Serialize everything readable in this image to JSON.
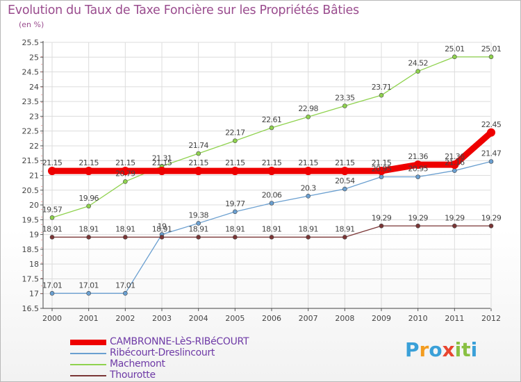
{
  "title": "Evolution du Taux de Taxe Foncière sur les Propriétés Bâties",
  "unit_label": "(en %)",
  "brand": {
    "letters": [
      "P",
      "r",
      "o",
      "x",
      "i",
      "t",
      "i"
    ],
    "colors": [
      "#3aa0d8",
      "#f39c1f",
      "#3aa0d8",
      "#e8452f",
      "#89c043",
      "#89c043",
      "#3aa0d8"
    ]
  },
  "chart_data": {
    "type": "line",
    "title": "Evolution du Taux de Taxe Foncière sur les Propriétés Bâties",
    "ylabel": "(en %)",
    "xlabel": "",
    "ylim": [
      16.5,
      25.5
    ],
    "y_ticks": [
      "16.5",
      "17",
      "17.5",
      "18",
      "18.5",
      "19",
      "19.5",
      "20",
      "20.5",
      "21",
      "21.5",
      "22",
      "22.5",
      "23",
      "23.5",
      "24",
      "24.5",
      "25",
      "25.5"
    ],
    "categories": [
      "2000",
      "2001",
      "2002",
      "2003",
      "2004",
      "2005",
      "2006",
      "2007",
      "2008",
      "2009",
      "2010",
      "2011",
      "2012"
    ],
    "legend_position": "bottom-left",
    "series": [
      {
        "name": "CAMBRONNE-LèS-RIBéCOURT",
        "color": "#ee0000",
        "values": [
          21.15,
          21.15,
          21.15,
          21.15,
          21.15,
          21.15,
          21.15,
          21.15,
          21.15,
          21.15,
          21.36,
          21.36,
          22.45
        ],
        "labels": [
          "21.15",
          "21.15",
          "21.15",
          "21.15",
          "21.15",
          "21.15",
          "21.15",
          "21.15",
          "21.15",
          "21.15",
          "21.36",
          "21.36",
          "22.45"
        ]
      },
      {
        "name": "Ribécourt-Dreslincourt",
        "color": "#6a9fd0",
        "values": [
          17.01,
          17.01,
          17.01,
          19,
          19.38,
          19.77,
          20.06,
          20.3,
          20.54,
          20.95,
          20.95,
          21.16,
          21.47
        ],
        "labels": [
          "17.01",
          "17.01",
          "17.01",
          "19",
          "19.38",
          "19.77",
          "20.06",
          "20.3",
          "20.54",
          "20.95",
          "20.95",
          "21.16",
          "21.47"
        ]
      },
      {
        "name": "Machemont",
        "color": "#8fd24e",
        "values": [
          19.57,
          19.96,
          20.79,
          21.31,
          21.74,
          22.17,
          22.61,
          22.98,
          23.35,
          23.71,
          24.52,
          25.01,
          25.01
        ],
        "labels": [
          "19.57",
          "19.96",
          "20.79",
          "21.31",
          "21.74",
          "22.17",
          "22.61",
          "22.98",
          "23.35",
          "23.71",
          "24.52",
          "25.01",
          "25.01"
        ]
      },
      {
        "name": "Thourotte",
        "color": "#7a3535",
        "values": [
          18.91,
          18.91,
          18.91,
          18.91,
          18.91,
          18.91,
          18.91,
          18.91,
          18.91,
          19.29,
          19.29,
          19.29,
          19.29
        ],
        "labels": [
          "18.91",
          "18.91",
          "18.91",
          "18.91",
          "18.91",
          "18.91",
          "18.91",
          "18.91",
          "18.91",
          "19.29",
          "19.29",
          "19.29",
          "19.29"
        ]
      }
    ]
  }
}
